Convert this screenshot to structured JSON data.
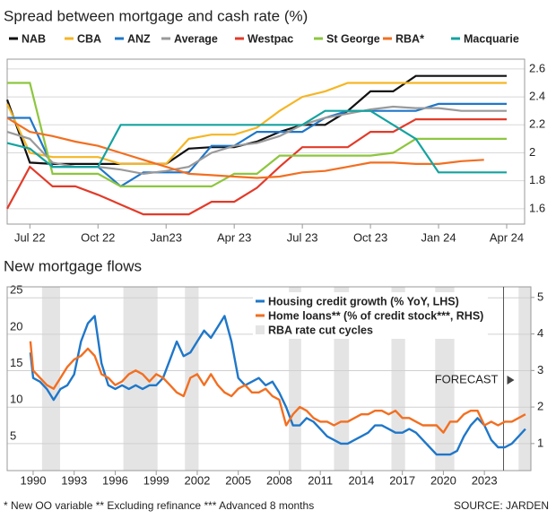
{
  "chart_data": [
    {
      "type": "line",
      "title": "Spread between mortgage and cash rate (%)",
      "categories": [
        null,
        "Jul 22",
        null,
        null,
        "Oct 22",
        null,
        null,
        "Jan23",
        null,
        null,
        "Apr 23",
        null,
        null,
        "Jul 23",
        null,
        null,
        "Oct 23",
        null,
        null,
        "Jan 24",
        null,
        null,
        "Apr 24"
      ],
      "series": [
        {
          "name": "NAB",
          "color": "#111111",
          "values": [
            2.38,
            1.93,
            1.92,
            1.92,
            1.92,
            1.92,
            1.92,
            1.92,
            2.03,
            2.04,
            2.04,
            2.08,
            2.15,
            2.2,
            2.2,
            2.3,
            2.44,
            2.44,
            2.55,
            2.55,
            2.55,
            2.55,
            2.55
          ]
        },
        {
          "name": "CBA",
          "color": "#f5b625",
          "values": [
            2.35,
            2.0,
            1.97,
            1.97,
            1.97,
            1.92,
            1.92,
            1.92,
            2.1,
            2.13,
            2.13,
            2.18,
            2.3,
            2.4,
            2.44,
            2.5,
            2.5,
            2.5,
            2.5,
            2.5,
            2.5,
            2.5,
            2.5
          ]
        },
        {
          "name": "ANZ",
          "color": "#1f77c9",
          "values": [
            2.25,
            2.25,
            1.9,
            1.9,
            1.9,
            1.76,
            1.86,
            1.86,
            1.86,
            2.05,
            2.05,
            2.15,
            2.15,
            2.15,
            2.25,
            2.3,
            2.3,
            2.3,
            2.3,
            2.35,
            2.35,
            2.35,
            2.35
          ]
        },
        {
          "name": "Average",
          "color": "#9a9a9a",
          "values": [
            2.15,
            2.1,
            1.93,
            1.9,
            1.9,
            1.88,
            1.85,
            1.87,
            1.9,
            2.0,
            2.05,
            2.07,
            2.12,
            2.2,
            2.25,
            2.28,
            2.31,
            2.33,
            2.32,
            2.32,
            2.3,
            2.3,
            2.3
          ]
        },
        {
          "name": "Westpac",
          "color": "#e23b2a",
          "values": [
            1.6,
            1.9,
            1.76,
            1.76,
            1.7,
            1.63,
            1.56,
            1.56,
            1.56,
            1.65,
            1.65,
            1.75,
            1.9,
            2.04,
            2.04,
            2.04,
            2.15,
            2.15,
            2.24,
            2.24,
            2.24,
            2.24,
            2.24
          ]
        },
        {
          "name": "St George",
          "color": "#8dc63f",
          "values": [
            2.5,
            2.5,
            1.85,
            1.85,
            1.85,
            1.76,
            1.76,
            1.76,
            1.76,
            1.76,
            1.85,
            1.85,
            1.98,
            1.98,
            1.98,
            1.98,
            1.98,
            2.0,
            2.1,
            2.1,
            2.1,
            2.1,
            2.1
          ]
        },
        {
          "name": "RBA*",
          "color": "#f26f21",
          "values": [
            2.25,
            2.15,
            2.12,
            2.08,
            2.05,
            2.0,
            1.95,
            1.9,
            1.85,
            1.84,
            1.83,
            1.82,
            1.83,
            1.86,
            1.87,
            1.9,
            1.93,
            1.93,
            1.92,
            1.92,
            1.94,
            1.95,
            null
          ]
        },
        {
          "name": "Macquarie",
          "color": "#14a3a0",
          "values": [
            2.07,
            2.03,
            1.9,
            1.9,
            1.9,
            2.2,
            2.2,
            2.2,
            2.2,
            2.2,
            2.2,
            2.2,
            2.2,
            2.2,
            2.3,
            2.3,
            2.3,
            2.2,
            2.1,
            1.86,
            1.86,
            1.86,
            1.86
          ]
        }
      ],
      "ylim": [
        1.49,
        2.67
      ],
      "yticks": [
        1.6,
        1.8,
        2.0,
        2.2,
        2.4,
        2.6
      ],
      "grid": true
    },
    {
      "type": "line",
      "title": "New mortgage flows",
      "x": [
        1989.8,
        1990,
        1990.5,
        1991,
        1991.5,
        1992,
        1992.5,
        1993,
        1993.5,
        1994,
        1994.5,
        1995,
        1995.5,
        1996,
        1996.5,
        1997,
        1997.5,
        1998,
        1998.5,
        1999,
        1999.5,
        2000,
        2000.5,
        2001,
        2001.5,
        2002,
        2002.5,
        2003,
        2003.5,
        2004,
        2004.5,
        2005,
        2005.5,
        2006,
        2006.5,
        2007,
        2007.5,
        2008,
        2008.5,
        2009,
        2009.5,
        2010,
        2010.5,
        2011,
        2011.5,
        2012,
        2012.5,
        2013,
        2013.5,
        2014,
        2014.5,
        2015,
        2015.5,
        2016,
        2016.5,
        2017,
        2017.5,
        2018,
        2018.5,
        2019,
        2019.5,
        2020,
        2020.5,
        2021,
        2021.5,
        2022,
        2022.5,
        2023,
        2023.5,
        2024,
        2024.5,
        2025,
        2025.5,
        2026
      ],
      "series": [
        {
          "name": "Housing credit growth (% YoY, LHS)",
          "color": "#1f77c9",
          "values": [
            17.5,
            14,
            13.5,
            12.5,
            11,
            12.5,
            13,
            14.5,
            19,
            21.5,
            22.5,
            16,
            13,
            12.5,
            13,
            12.5,
            13,
            12.5,
            13,
            13,
            14,
            16.5,
            19,
            17,
            17.5,
            19,
            20.5,
            19.5,
            21,
            22.5,
            19,
            14,
            13,
            13.5,
            14,
            13,
            13.5,
            12,
            10,
            7.5,
            7.5,
            8.5,
            8,
            7,
            6,
            5.5,
            5,
            5,
            5.5,
            6,
            6.5,
            7.5,
            7.5,
            7,
            6.5,
            6.5,
            7,
            6.5,
            5.5,
            4.5,
            3.5,
            3.5,
            3.5,
            4,
            6,
            7.5,
            8.5,
            7.5,
            5.5,
            4.5,
            4.5,
            5,
            6,
            7
          ]
        },
        {
          "name": "Home loans** (% of credit stock***, RHS)",
          "color": "#f26f21",
          "axis": "y2",
          "values": [
            3.8,
            3.0,
            2.8,
            2.6,
            2.5,
            2.8,
            3.1,
            3.3,
            3.4,
            3.6,
            3.4,
            2.9,
            2.8,
            2.6,
            2.7,
            2.9,
            3.0,
            2.9,
            2.7,
            2.9,
            2.8,
            2.6,
            2.4,
            2.3,
            2.8,
            2.9,
            2.6,
            2.9,
            2.6,
            2.4,
            2.3,
            2.5,
            2.6,
            2.4,
            2.4,
            2.5,
            2.3,
            2.2,
            1.5,
            1.8,
            2.0,
            1.9,
            1.7,
            1.6,
            1.6,
            1.5,
            1.6,
            1.6,
            1.7,
            1.8,
            1.8,
            1.9,
            1.9,
            1.8,
            1.9,
            1.7,
            1.7,
            1.6,
            1.5,
            1.5,
            1.5,
            1.3,
            1.6,
            1.6,
            1.8,
            1.9,
            1.9,
            1.5,
            1.6,
            1.5,
            1.6,
            1.6,
            1.7,
            1.8
          ]
        }
      ],
      "shaded": {
        "name": "RBA rate cut cycles",
        "color": "#e4e4e4",
        "ranges": [
          [
            1990.65,
            1991.97
          ],
          [
            1996.6,
            1999.1
          ],
          [
            2001.1,
            2002.1
          ],
          [
            2008.7,
            2009.6
          ],
          [
            2012.0,
            2013.1
          ],
          [
            2016.2,
            2017.2
          ],
          [
            2019.4,
            2020.8
          ],
          [
            2025.5,
            2026.4
          ]
        ]
      },
      "annotation": "FORECAST",
      "forecast_start": 2024.4,
      "xlim": [
        1988.1,
        2026.4
      ],
      "xticks": [
        1990,
        1993,
        1996,
        1999,
        2002,
        2005,
        2008,
        2011,
        2014,
        2017,
        2020,
        2023
      ],
      "ylim": [
        1.3,
        26.5
      ],
      "yticks": [
        5,
        10,
        15,
        20,
        25
      ],
      "y2lim": [
        0.26,
        5.29
      ],
      "y2ticks": [
        1,
        2,
        3,
        4,
        5
      ],
      "grid": true
    }
  ],
  "footnote": "* New OO variable  ** Excluding refinance  *** Advanced 8 months",
  "source": "SOURCE: JARDEN"
}
